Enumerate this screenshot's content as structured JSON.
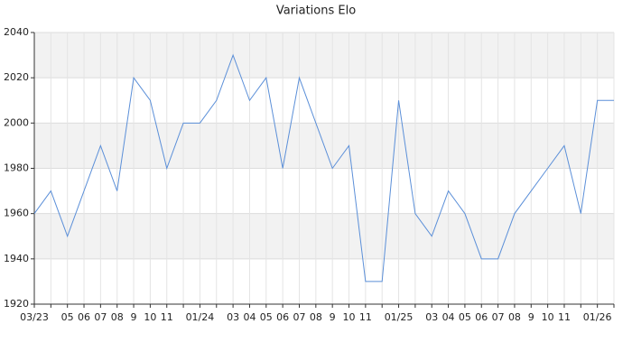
{
  "chart_data": {
    "type": "line",
    "title": "Variations Elo",
    "categories": [
      "03/23",
      null,
      "05",
      "06",
      "07",
      "08",
      "9",
      "10",
      "11",
      null,
      "01/24",
      null,
      "03",
      "04",
      "05",
      "06",
      "07",
      "08",
      "9",
      "10",
      "11",
      null,
      "01/25",
      null,
      "03",
      "04",
      "05",
      "06",
      "07",
      "08",
      "9",
      "10",
      "11",
      null,
      "01/26",
      null
    ],
    "series": [
      {
        "name": "Elo",
        "color": "#5b8fd8",
        "values": [
          1960,
          1970,
          1950,
          1970,
          1990,
          1970,
          2020,
          2010,
          1980,
          2000,
          2000,
          2010,
          2030,
          2010,
          2020,
          1980,
          2020,
          2000,
          1980,
          1990,
          1930,
          1930,
          2010,
          1960,
          1950,
          1970,
          1960,
          1940,
          1940,
          1960,
          1970,
          1980,
          1990,
          1960,
          2010,
          2010
        ]
      }
    ],
    "ylim": [
      1920,
      2040
    ],
    "yticks": [
      1920,
      1940,
      1960,
      1980,
      2000,
      2020,
      2040
    ],
    "grid": true
  }
}
